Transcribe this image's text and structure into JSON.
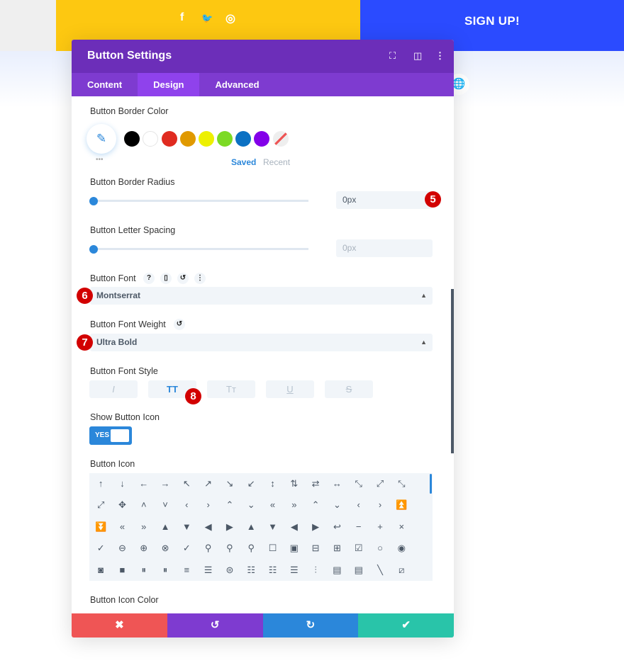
{
  "page": {
    "signup": "SIGN UP!",
    "social": [
      "f",
      "🐦",
      "◎"
    ]
  },
  "panel": {
    "title": "Button Settings",
    "tabs": [
      "Content",
      "Design",
      "Advanced"
    ]
  },
  "border_color": {
    "label": "Button Border Color",
    "swatches": [
      "#000000",
      "#ffffff",
      "#e02b20",
      "#e09900",
      "#edf000",
      "#7cda24",
      "#0c71c3",
      "#8300e9"
    ],
    "saved": "Saved",
    "recent": "Recent",
    "more": "•••"
  },
  "border_radius": {
    "label": "Button Border Radius",
    "value": "0px",
    "slider": 0,
    "badge": "5"
  },
  "letter_spacing": {
    "label": "Button Letter Spacing",
    "placeholder": "0px",
    "slider": 0
  },
  "font": {
    "label": "Button Font",
    "value": "Montserrat",
    "badge": "6",
    "icons": [
      "?",
      "▯",
      "↺",
      "⋮"
    ]
  },
  "font_weight": {
    "label": "Button Font Weight",
    "value": "Ultra Bold",
    "badge": "7",
    "reset": "↺"
  },
  "font_style": {
    "label": "Button Font Style",
    "buttons": [
      "I",
      "TT",
      "Tт",
      "U",
      "S"
    ],
    "active": "TT",
    "badge": "8"
  },
  "show_icon": {
    "label": "Show Button Icon",
    "toggle": "YES"
  },
  "button_icon": {
    "label": "Button Icon",
    "icons": [
      "↑",
      "↓",
      "←",
      "→",
      "↖",
      "↗",
      "↘",
      "↙",
      "↕",
      "⇅",
      "⇄",
      "↔",
      "⤡",
      "⤢",
      "⤡",
      "⤢",
      "✥",
      "˄",
      "˅",
      "‹",
      "›",
      "⌃",
      "⌄",
      "«",
      "»",
      "⌃",
      "⌄",
      "‹",
      "›",
      "⏫",
      "⏬",
      "«",
      "»",
      "▲",
      "▼",
      "◀",
      "▶",
      "▲",
      "▼",
      "◀",
      "▶",
      "↩",
      "−",
      "+",
      "×",
      "✓",
      "⊖",
      "⊕",
      "⊗",
      "✓",
      "⚲",
      "⚲",
      "⚲",
      "☐",
      "▣",
      "⊟",
      "⊞",
      "☑",
      "○",
      "◉",
      "◙",
      "■",
      "⏸",
      "⏸",
      "≡",
      "☰",
      "⊜",
      "☷",
      "☷",
      "☰",
      "⫶",
      "▤",
      "▤",
      "╲",
      "⧄"
    ]
  },
  "icon_color": {
    "label": "Button Icon Color"
  },
  "footer": {
    "cancel": "✖",
    "undo": "↺",
    "redo": "↻",
    "save": "✔"
  },
  "colors": {
    "header": "#6c2eb9",
    "tabs": "#7e3bd0",
    "accent": "#2b87da"
  }
}
